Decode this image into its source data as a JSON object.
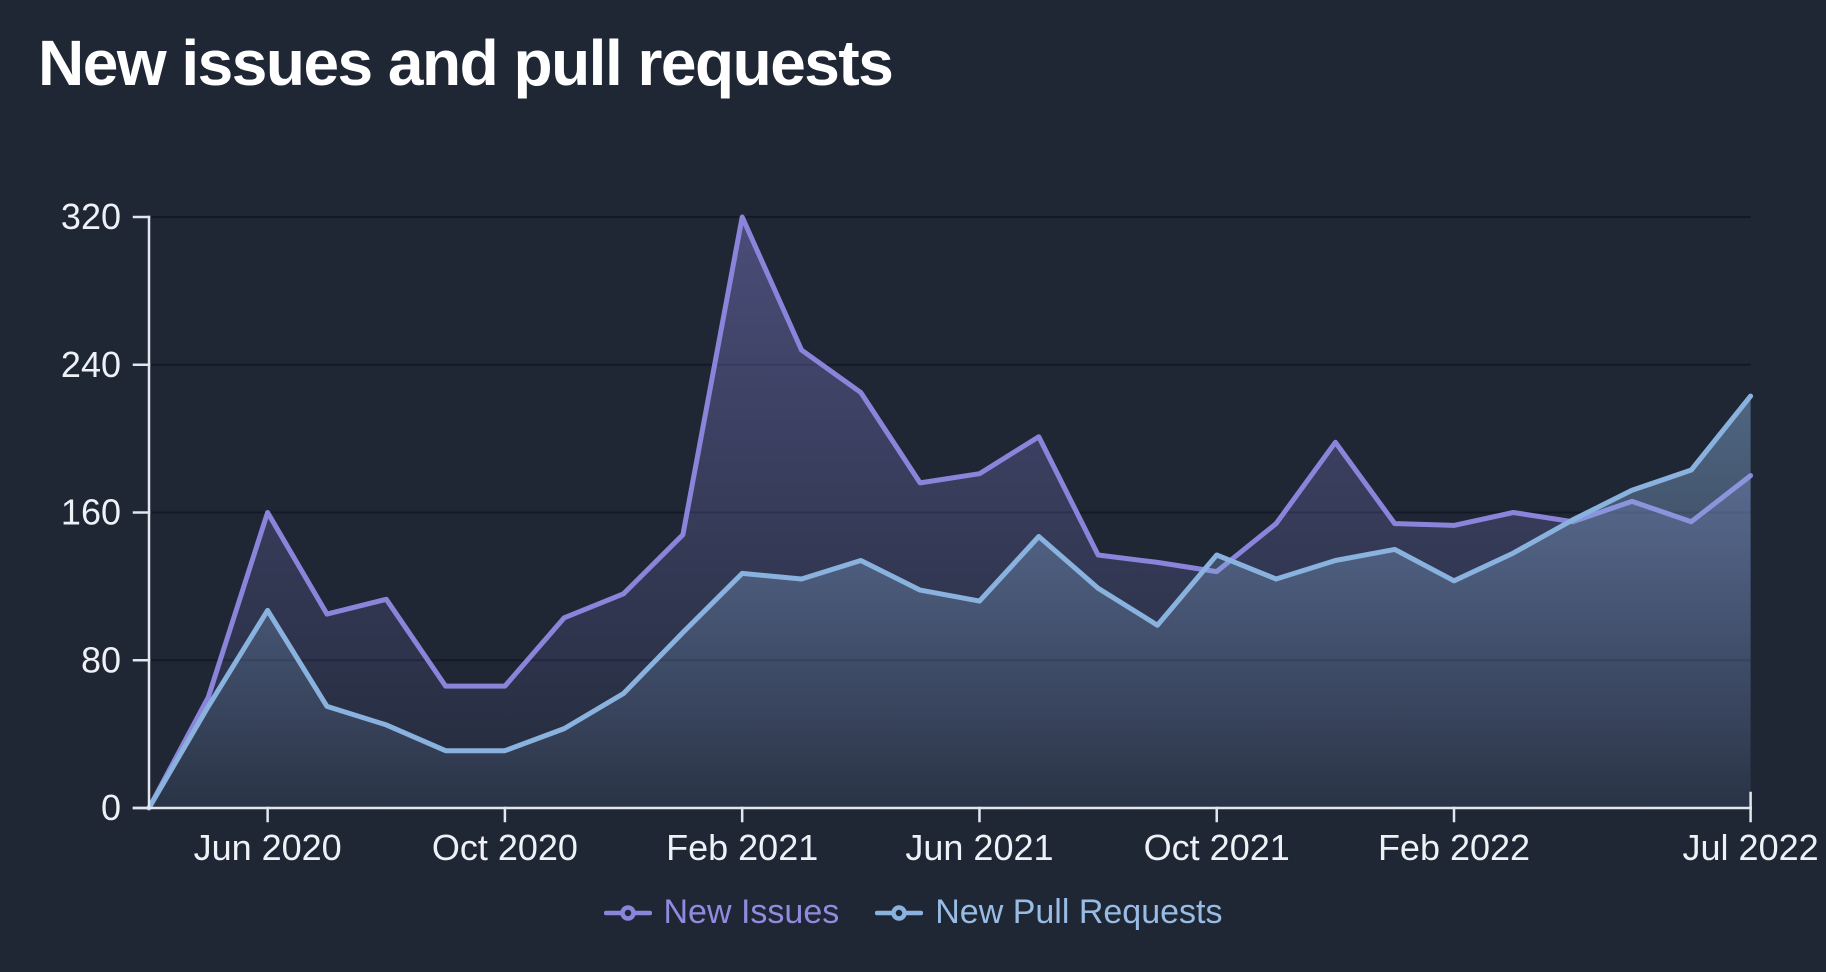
{
  "title": "New issues and pull requests",
  "colors": {
    "background": "#1f2735",
    "title_text": "#ffffff",
    "axis_line": "#e2e6ed",
    "grid_line": "rgba(9,14,26,0.55)",
    "tick_label": "#eef1f6",
    "issues_line": "#8a85db",
    "prs_line": "#8ab2de"
  },
  "legend": [
    {
      "id": "issues",
      "label": "New Issues",
      "marker": "line-circle",
      "color": "#8a85db"
    },
    {
      "id": "prs",
      "label": "New Pull Requests",
      "marker": "line-circle",
      "color": "#8ab2de"
    }
  ],
  "chart_data": {
    "type": "area",
    "title": "New issues and pull requests",
    "x": [
      "Apr 2020",
      "May 2020",
      "Jun 2020",
      "Jul 2020",
      "Aug 2020",
      "Sep 2020",
      "Oct 2020",
      "Nov 2020",
      "Dec 2020",
      "Jan 2021",
      "Feb 2021",
      "Mar 2021",
      "Apr 2021",
      "May 2021",
      "Jun 2021",
      "Jul 2021",
      "Aug 2021",
      "Sep 2021",
      "Oct 2021",
      "Nov 2021",
      "Dec 2021",
      "Jan 2022",
      "Feb 2022",
      "Mar 2022",
      "Apr 2022",
      "May 2022",
      "Jun 2022",
      "Jul 2022"
    ],
    "series": [
      {
        "name": "New Issues",
        "color": "#8a85db",
        "values": [
          0,
          60,
          160,
          105,
          113,
          66,
          66,
          103,
          116,
          148,
          320,
          248,
          225,
          176,
          181,
          201,
          137,
          133,
          128,
          154,
          198,
          154,
          153,
          160,
          155,
          166,
          155,
          180
        ]
      },
      {
        "name": "New Pull Requests",
        "color": "#8ab2de",
        "values": [
          0,
          55,
          107,
          55,
          45,
          31,
          31,
          43,
          62,
          95,
          127,
          124,
          134,
          118,
          112,
          147,
          119,
          99,
          137,
          124,
          134,
          140,
          123,
          138,
          156,
          172,
          183,
          223
        ]
      }
    ],
    "ylim": [
      0,
      320
    ],
    "yticks": [
      0,
      80,
      160,
      240,
      320
    ],
    "xticks": [
      {
        "index": 2,
        "label": "Jun 2020"
      },
      {
        "index": 6,
        "label": "Oct 2020"
      },
      {
        "index": 10,
        "label": "Feb 2021"
      },
      {
        "index": 14,
        "label": "Jun 2021"
      },
      {
        "index": 18,
        "label": "Oct 2021"
      },
      {
        "index": 22,
        "label": "Feb 2022"
      },
      {
        "index": 27,
        "label": "Jul 2022"
      }
    ],
    "grid": "horizontal",
    "legend_position": "bottom"
  }
}
